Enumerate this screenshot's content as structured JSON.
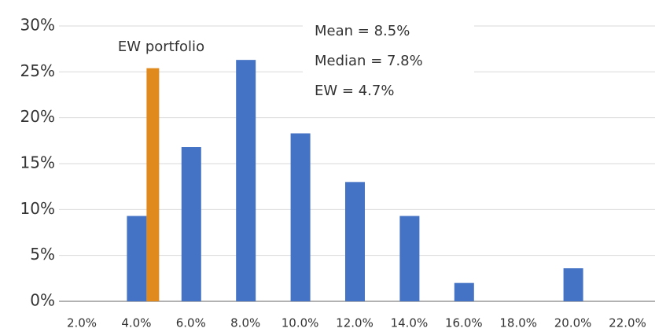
{
  "chart_data": {
    "type": "bar",
    "categories": [
      "2.0%",
      "4.0%",
      "6.0%",
      "8.0%",
      "10.0%",
      "12.0%",
      "14.0%",
      "16.0%",
      "18.0%",
      "20.0%",
      "22.0%"
    ],
    "series": [
      {
        "color": "#4472c4",
        "values": [
          0,
          9.3,
          16.8,
          26.3,
          18.3,
          13.0,
          9.3,
          2.0,
          0,
          3.6,
          0
        ]
      },
      {
        "name": "EW portfolio",
        "color": "#e08a1e",
        "values": [
          null,
          25.4,
          null,
          null,
          null,
          null,
          null,
          null,
          null,
          null,
          null
        ]
      }
    ],
    "ylim": [
      0,
      30
    ],
    "yticks": [
      {
        "value": 0,
        "label": "0%"
      },
      {
        "value": 5,
        "label": "5%"
      },
      {
        "value": 10,
        "label": "10%"
      },
      {
        "value": 15,
        "label": "15%"
      },
      {
        "value": 20,
        "label": "20%"
      },
      {
        "value": 25,
        "label": "25%"
      },
      {
        "value": 30,
        "label": "30%"
      }
    ],
    "grid": true,
    "annotations": [
      "Mean = 8.5%",
      "Median = 7.8%",
      "EW = 4.7%"
    ]
  }
}
